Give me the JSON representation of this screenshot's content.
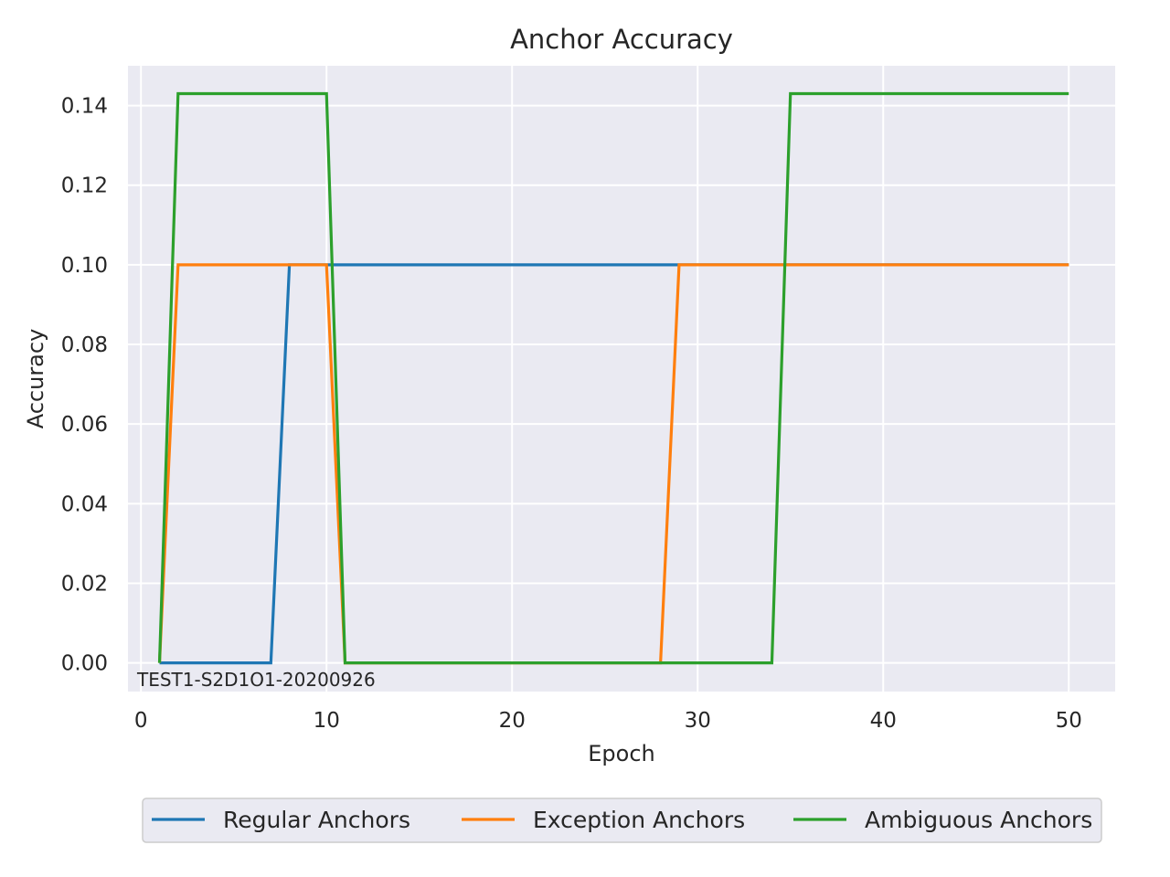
{
  "chart_data": {
    "type": "line",
    "title": "Anchor Accuracy",
    "xlabel": "Epoch",
    "ylabel": "Accuracy",
    "xlim": [
      -0.7,
      52.5
    ],
    "ylim": [
      -0.0072,
      0.15
    ],
    "xticks": [
      0,
      10,
      20,
      30,
      40,
      50
    ],
    "yticks": [
      0.0,
      0.02,
      0.04,
      0.06,
      0.08,
      0.1,
      0.12,
      0.14
    ],
    "ytick_labels": [
      "0.00",
      "0.02",
      "0.04",
      "0.06",
      "0.08",
      "0.10",
      "0.12",
      "0.14"
    ],
    "grid": true,
    "legend_position": "bottom-center",
    "annotation": "TEST1-S2D1O1-20200926",
    "series": [
      {
        "name": "Regular Anchors",
        "color": "#1f77b4",
        "x": [
          1,
          2,
          3,
          4,
          5,
          6,
          7,
          8,
          9,
          10,
          11,
          12,
          13,
          14,
          15,
          16,
          17,
          18,
          19,
          20,
          21,
          22,
          23,
          24,
          25,
          26,
          27,
          28,
          29,
          30,
          31,
          32,
          33,
          34,
          35,
          36,
          37,
          38,
          39,
          40,
          41,
          42,
          43,
          44,
          45,
          46,
          47,
          48,
          49,
          50
        ],
        "y": [
          0,
          0,
          0,
          0,
          0,
          0,
          0,
          0.1,
          0.1,
          0.1,
          0.1,
          0.1,
          0.1,
          0.1,
          0.1,
          0.1,
          0.1,
          0.1,
          0.1,
          0.1,
          0.1,
          0.1,
          0.1,
          0.1,
          0.1,
          0.1,
          0.1,
          0.1,
          0.1,
          0.1,
          0.1,
          0.1,
          0.1,
          0.1,
          0.1,
          0.1,
          0.1,
          0.1,
          0.1,
          0.1,
          0.1,
          0.1,
          0.1,
          0.1,
          0.1,
          0.1,
          0.1,
          0.1,
          0.1,
          0.1
        ]
      },
      {
        "name": "Exception Anchors",
        "color": "#ff7f0e",
        "x": [
          1,
          2,
          3,
          4,
          5,
          6,
          7,
          8,
          9,
          10,
          11,
          12,
          13,
          14,
          15,
          16,
          17,
          18,
          19,
          20,
          21,
          22,
          23,
          24,
          25,
          26,
          27,
          28,
          29,
          30,
          31,
          32,
          33,
          34,
          35,
          36,
          37,
          38,
          39,
          40,
          41,
          42,
          43,
          44,
          45,
          46,
          47,
          48,
          49,
          50
        ],
        "y": [
          0,
          0.1,
          0.1,
          0.1,
          0.1,
          0.1,
          0.1,
          0.1,
          0.1,
          0.1,
          0,
          0,
          0,
          0,
          0,
          0,
          0,
          0,
          0,
          0,
          0,
          0,
          0,
          0,
          0,
          0,
          0,
          0,
          0.1,
          0.1,
          0.1,
          0.1,
          0.1,
          0.1,
          0.1,
          0.1,
          0.1,
          0.1,
          0.1,
          0.1,
          0.1,
          0.1,
          0.1,
          0.1,
          0.1,
          0.1,
          0.1,
          0.1,
          0.1,
          0.1
        ]
      },
      {
        "name": "Ambiguous Anchors",
        "color": "#2ca02c",
        "x": [
          1,
          2,
          3,
          4,
          5,
          6,
          7,
          8,
          9,
          10,
          11,
          12,
          13,
          14,
          15,
          16,
          17,
          18,
          19,
          20,
          21,
          22,
          23,
          24,
          25,
          26,
          27,
          28,
          29,
          30,
          31,
          32,
          33,
          34,
          35,
          36,
          37,
          38,
          39,
          40,
          41,
          42,
          43,
          44,
          45,
          46,
          47,
          48,
          49,
          50
        ],
        "y": [
          0,
          0.143,
          0.143,
          0.143,
          0.143,
          0.143,
          0.143,
          0.143,
          0.143,
          0.143,
          0,
          0,
          0,
          0,
          0,
          0,
          0,
          0,
          0,
          0,
          0,
          0,
          0,
          0,
          0,
          0,
          0,
          0,
          0,
          0,
          0,
          0,
          0,
          0,
          0.143,
          0.143,
          0.143,
          0.143,
          0.143,
          0.143,
          0.143,
          0.143,
          0.143,
          0.143,
          0.143,
          0.143,
          0.143,
          0.143,
          0.143,
          0.143
        ]
      }
    ]
  }
}
